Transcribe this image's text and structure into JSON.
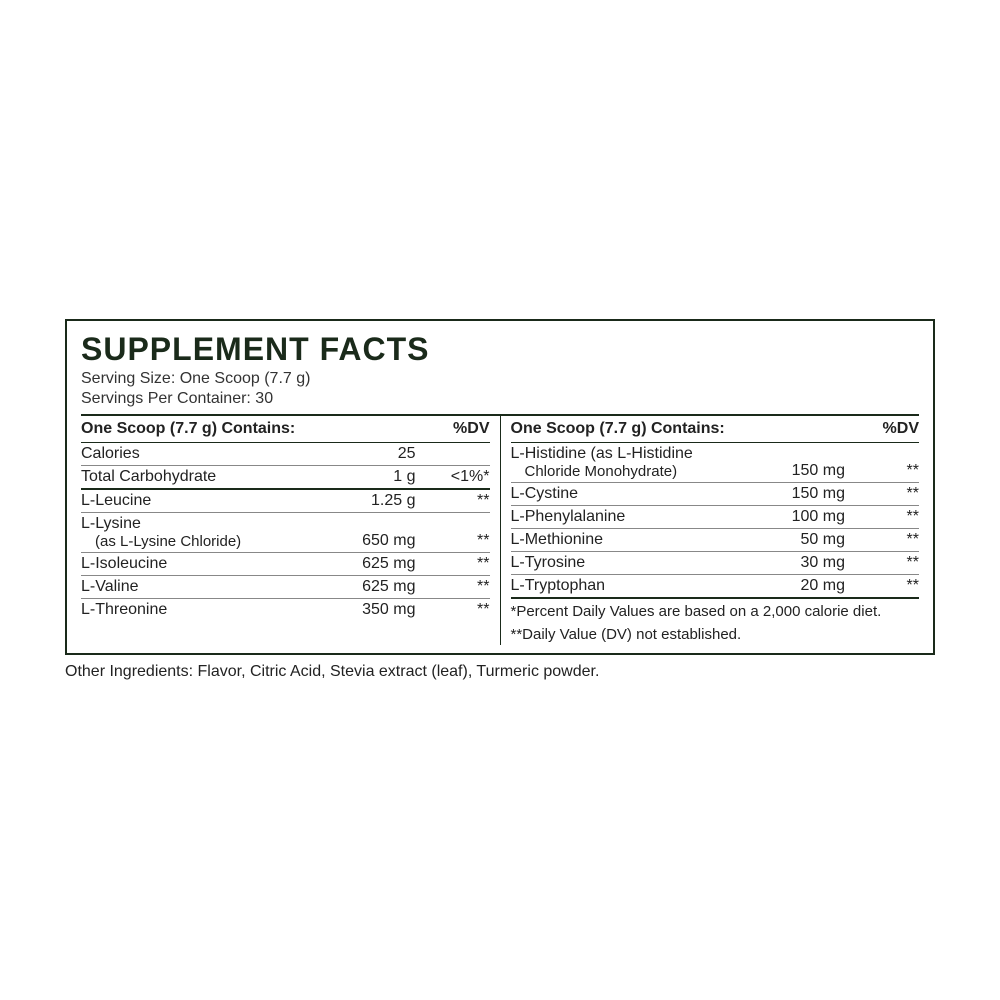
{
  "title": "SUPPLEMENT FACTS",
  "servingSize": "Serving Size: One Scoop (7.7 g)",
  "servingsPer": "Servings Per Container: 30",
  "hdrName": "One Scoop (7.7 g) Contains:",
  "hdrDV": "%DV",
  "left": {
    "r1": {
      "n": "Calories",
      "a": "25",
      "d": ""
    },
    "r2": {
      "n": "Total Carbohydrate",
      "a": "1 g",
      "d": "<1%*"
    },
    "r3": {
      "n": "L-Leucine",
      "a": "1.25 g",
      "d": "**"
    },
    "r4": {
      "n": "L-Lysine",
      "s": "(as L-Lysine Chloride)",
      "a": "650 mg",
      "d": "**"
    },
    "r5": {
      "n": "L-Isoleucine",
      "a": "625 mg",
      "d": "**"
    },
    "r6": {
      "n": "L-Valine",
      "a": "625 mg",
      "d": "**"
    },
    "r7": {
      "n": "L-Threonine",
      "a": "350 mg",
      "d": "**"
    }
  },
  "right": {
    "r1": {
      "n": "L-Histidine (as L-Histidine",
      "s": "Chloride Monohydrate)",
      "a": "150 mg",
      "d": "**"
    },
    "r2": {
      "n": "L-Cystine",
      "a": "150 mg",
      "d": "**"
    },
    "r3": {
      "n": "L-Phenylalanine",
      "a": "100 mg",
      "d": "**"
    },
    "r4": {
      "n": "L-Methionine",
      "a": "50 mg",
      "d": "**"
    },
    "r5": {
      "n": "L-Tyrosine",
      "a": "30 mg",
      "d": "**"
    },
    "r6": {
      "n": "L-Tryptophan",
      "a": "20 mg",
      "d": "**"
    }
  },
  "foot1": "*Percent Daily Values are based on a 2,000 calorie diet.",
  "foot2": "**Daily Value (DV) not established.",
  "other": "Other Ingredients: Flavor, Citric Acid, Stevia extract (leaf), Turmeric powder."
}
